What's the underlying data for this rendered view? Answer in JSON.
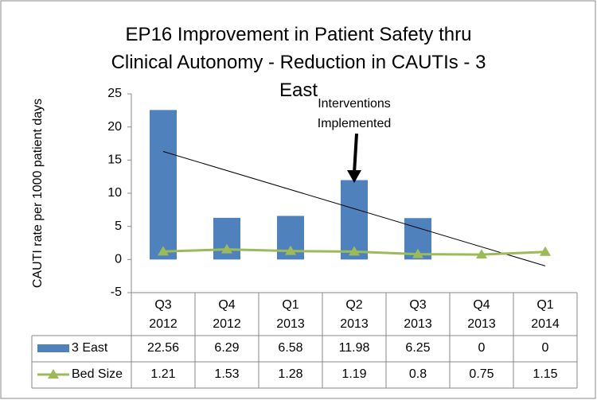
{
  "chart_data": {
    "type": "bar_line_table",
    "title": "EP16 Improvement in Patient Safety thru Clinical Autonomy - Reduction in CAUTIs - 3 East",
    "y_label": "CAUTI rate per 1000 patient days",
    "annotation": "Interventions Implemented",
    "categories": [
      "Q3 2012",
      "Q4 2012",
      "Q1 2013",
      "Q2 2013",
      "Q3 2013",
      "Q4 2013",
      "Q1 2014"
    ],
    "series": [
      {
        "name": "3 East",
        "type": "bar",
        "color": "#4f81bd",
        "trendline": "linear",
        "values": [
          22.56,
          6.29,
          6.58,
          11.98,
          6.25,
          0,
          0
        ]
      },
      {
        "name": "Bed Size",
        "type": "line",
        "color": "#9bbb59",
        "values": [
          1.21,
          1.53,
          1.28,
          1.19,
          0.8,
          0.75,
          1.15
        ]
      }
    ],
    "annotation_category": 3,
    "ylim": [
      -5,
      25
    ],
    "yticks": [
      -5,
      0,
      5,
      10,
      15,
      20,
      25
    ]
  }
}
